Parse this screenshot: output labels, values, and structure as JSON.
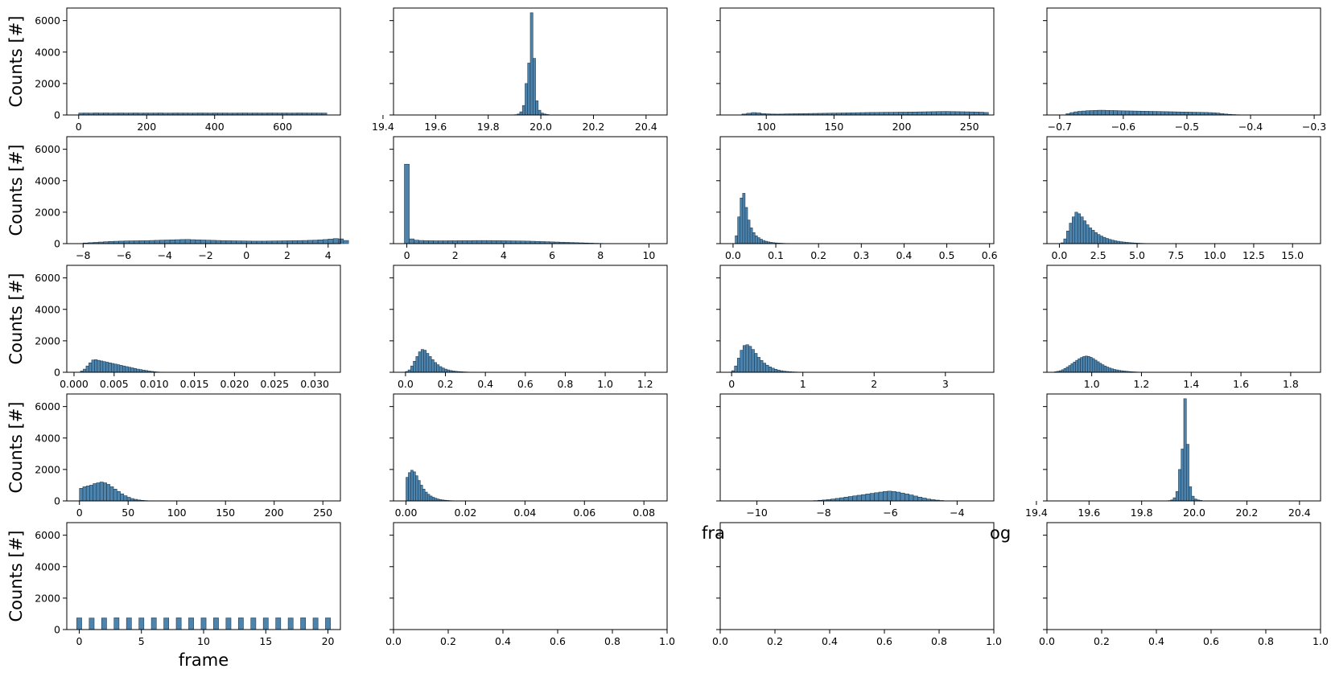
{
  "chart_data": {
    "type": "bar",
    "layout": "grid",
    "rows": 5,
    "cols": 4,
    "shared_y": true,
    "ylim": [
      0,
      6800
    ],
    "y_ticks": [
      0,
      2000,
      4000,
      6000
    ],
    "ylabel": "Counts [#]",
    "grid": false,
    "bar_color": "#4c84ae",
    "overlapping_text_left": "fra",
    "overlapping_text_right": "og",
    "subplots": [
      {
        "xlim": [
          -35,
          770
        ],
        "x_ticks": [
          0,
          200,
          400,
          600
        ],
        "xlabel": "",
        "bars": {
          "x0": 0,
          "bin_width": 14.6,
          "counts": [
            120,
            125,
            118,
            130,
            122,
            128,
            119,
            124,
            126,
            121,
            123,
            127,
            120,
            125,
            122,
            124,
            128,
            119,
            121,
            126,
            123,
            125,
            120,
            122,
            127,
            124,
            121,
            126,
            123,
            125,
            119,
            122,
            124,
            127,
            120,
            125,
            123,
            121,
            126,
            124,
            122,
            125,
            120,
            123,
            127,
            124,
            121,
            125,
            122,
            120
          ]
        }
      },
      {
        "xlim": [
          19.44,
          20.48
        ],
        "x_ticks": [
          19.4,
          19.6,
          19.8,
          20.0,
          20.2,
          20.4
        ],
        "xlabel": "",
        "bars": {
          "x0": 19.9,
          "bin_width": 0.01,
          "counts": [
            20,
            60,
            200,
            600,
            2000,
            3300,
            6500,
            3600,
            900,
            300,
            120,
            60,
            30,
            10,
            5,
            2
          ]
        }
      },
      {
        "xlim": [
          66,
          268
        ],
        "x_ticks": [
          100,
          150,
          200,
          250
        ],
        "xlabel": "",
        "bars": {
          "x0": 82,
          "bin_width": 3.5,
          "counts": [
            60,
            110,
            150,
            130,
            90,
            70,
            60,
            55,
            60,
            70,
            75,
            80,
            85,
            90,
            95,
            100,
            105,
            110,
            115,
            120,
            125,
            130,
            135,
            140,
            145,
            150,
            155,
            160,
            160,
            165,
            170,
            170,
            175,
            180,
            180,
            185,
            190,
            195,
            200,
            205,
            210,
            215,
            220,
            220,
            215,
            210,
            205,
            200,
            195,
            190,
            180,
            160
          ]
        }
      },
      {
        "xlim": [
          -0.72,
          -0.29
        ],
        "x_ticks": [
          -0.7,
          -0.6,
          -0.5,
          -0.4,
          -0.3
        ],
        "xlabel": "",
        "bars": {
          "x0": -0.69,
          "bin_width": 0.0062,
          "counts": [
            80,
            150,
            200,
            230,
            250,
            270,
            280,
            290,
            300,
            300,
            290,
            285,
            280,
            270,
            265,
            260,
            255,
            250,
            245,
            240,
            235,
            230,
            225,
            220,
            215,
            210,
            205,
            200,
            195,
            190,
            185,
            180,
            175,
            170,
            165,
            160,
            150,
            140,
            120,
            90,
            60,
            40,
            25,
            15
          ]
        }
      },
      {
        "xlim": [
          -8.8,
          4.6
        ],
        "x_ticks": [
          -8,
          -6,
          -4,
          -2,
          0,
          2,
          4
        ],
        "xlabel": "",
        "bars": {
          "x0": -8.0,
          "bin_width": 0.25,
          "counts": [
            40,
            60,
            80,
            100,
            120,
            140,
            150,
            160,
            170,
            175,
            180,
            185,
            190,
            200,
            210,
            220,
            230,
            240,
            250,
            260,
            265,
            250,
            240,
            230,
            220,
            210,
            200,
            190,
            185,
            180,
            175,
            170,
            165,
            160,
            160,
            160,
            165,
            170,
            175,
            180,
            185,
            190,
            195,
            200,
            210,
            220,
            240,
            260,
            290,
            320,
            300,
            200
          ]
        }
      },
      {
        "xlim": [
          -0.55,
          10.75
        ],
        "x_ticks": [
          0,
          2,
          4,
          6,
          8,
          10
        ],
        "xlabel": "",
        "bars": {
          "x0": -0.1,
          "bin_width": 0.2,
          "counts": [
            5050,
            300,
            220,
            200,
            190,
            185,
            180,
            180,
            180,
            185,
            185,
            190,
            190,
            190,
            195,
            195,
            195,
            195,
            190,
            190,
            185,
            180,
            175,
            170,
            165,
            160,
            150,
            140,
            130,
            120,
            110,
            100,
            90,
            80,
            70,
            60,
            50,
            40,
            30,
            22,
            15,
            10,
            6,
            4,
            2
          ]
        }
      },
      {
        "xlim": [
          -0.03,
          0.61
        ],
        "x_ticks": [
          0.0,
          0.1,
          0.2,
          0.3,
          0.4,
          0.5,
          0.6
        ],
        "xlabel": "",
        "bars": {
          "x0": 0.005,
          "bin_width": 0.0058,
          "counts": [
            500,
            1700,
            2900,
            3200,
            2300,
            1500,
            1000,
            700,
            500,
            380,
            280,
            200,
            150,
            110,
            80,
            60,
            45,
            35,
            25,
            18,
            12,
            8,
            5,
            3
          ]
        }
      },
      {
        "xlim": [
          -0.8,
          16.8
        ],
        "x_ticks": [
          0.0,
          2.5,
          5.0,
          7.5,
          10.0,
          12.5,
          15.0
        ],
        "xlabel": "",
        "bars": {
          "x0": 0.1,
          "bin_width": 0.18,
          "counts": [
            50,
            300,
            800,
            1300,
            1700,
            2000,
            1900,
            1700,
            1450,
            1200,
            1000,
            850,
            700,
            580,
            480,
            400,
            330,
            270,
            220,
            180,
            150,
            120,
            100,
            80,
            65,
            50,
            40,
            30,
            22,
            15,
            10,
            6
          ]
        }
      },
      {
        "xlim": [
          -0.0009,
          0.0332
        ],
        "x_ticks": [
          0.0,
          0.005,
          0.01,
          0.015,
          0.02,
          0.025,
          0.03
        ],
        "xlabel": "",
        "bars": {
          "x0": 0.0008,
          "bin_width": 0.00035,
          "counts": [
            80,
            200,
            400,
            600,
            780,
            800,
            760,
            720,
            680,
            640,
            600,
            560,
            520,
            480,
            440,
            400,
            360,
            320,
            280,
            240,
            200,
            170,
            140,
            110,
            80,
            55,
            35,
            20,
            12,
            6
          ]
        }
      },
      {
        "xlim": [
          -0.06,
          1.31
        ],
        "x_ticks": [
          0.0,
          0.2,
          0.4,
          0.6,
          0.8,
          1.0,
          1.2
        ],
        "xlabel": "",
        "bars": {
          "x0": 0.0,
          "bin_width": 0.013,
          "counts": [
            50,
            150,
            400,
            700,
            1000,
            1300,
            1450,
            1400,
            1200,
            1000,
            800,
            620,
            480,
            360,
            270,
            200,
            150,
            110,
            80,
            60,
            45,
            35,
            25,
            18,
            12,
            8
          ]
        }
      },
      {
        "xlim": [
          -0.16,
          3.68
        ],
        "x_ticks": [
          0,
          1,
          2,
          3
        ],
        "xlabel": "",
        "bars": {
          "x0": 0.0,
          "bin_width": 0.04,
          "counts": [
            100,
            400,
            900,
            1400,
            1700,
            1750,
            1650,
            1450,
            1200,
            950,
            750,
            580,
            450,
            340,
            260,
            190,
            140,
            100,
            70,
            50,
            35,
            25,
            18,
            12,
            8,
            5
          ]
        }
      },
      {
        "xlim": [
          0.82,
          1.92
        ],
        "x_ticks": [
          1.0,
          1.2,
          1.4,
          1.6,
          1.8
        ],
        "xlabel": "",
        "bars": {
          "x0": 0.85,
          "bin_width": 0.0095,
          "counts": [
            30,
            60,
            100,
            160,
            240,
            330,
            430,
            540,
            650,
            760,
            860,
            940,
            1000,
            1030,
            1010,
            950,
            870,
            770,
            670,
            570,
            480,
            400,
            330,
            270,
            220,
            180,
            150,
            120,
            100,
            80,
            65,
            50,
            38,
            28,
            20,
            14,
            9,
            6
          ]
        }
      },
      {
        "xlim": [
          -13,
          268
        ],
        "x_ticks": [
          0,
          50,
          100,
          150,
          200,
          250
        ],
        "xlabel": "",
        "bars": {
          "x0": 0,
          "bin_width": 3.5,
          "counts": [
            800,
            900,
            950,
            1000,
            1100,
            1150,
            1200,
            1150,
            1050,
            900,
            750,
            600,
            450,
            330,
            230,
            150,
            100,
            60,
            35,
            20,
            10,
            5
          ]
        }
      },
      {
        "xlim": [
          -0.0042,
          0.0878
        ],
        "x_ticks": [
          0.0,
          0.02,
          0.04,
          0.06,
          0.08
        ],
        "xlabel": "",
        "bars": {
          "x0": 0.0,
          "bin_width": 0.0008,
          "counts": [
            1500,
            1800,
            1950,
            1850,
            1600,
            1300,
            1000,
            750,
            560,
            420,
            310,
            230,
            170,
            120,
            85,
            60,
            42,
            30,
            20,
            14,
            9,
            6
          ]
        }
      },
      {
        "xlim": [
          -11.1,
          -2.9
        ],
        "x_ticks": [
          -10,
          -8,
          -6,
          -4
        ],
        "xlabel": "",
        "bars": {
          "x0": -8.3,
          "bin_width": 0.13,
          "counts": [
            20,
            40,
            60,
            90,
            120,
            160,
            200,
            240,
            280,
            320,
            360,
            400,
            440,
            480,
            520,
            560,
            600,
            620,
            600,
            560,
            500,
            440,
            380,
            310,
            240,
            180,
            120,
            80,
            50,
            25
          ]
        }
      },
      {
        "xlim": [
          19.44,
          20.48
        ],
        "x_ticks": [
          19.4,
          19.6,
          19.8,
          20.0,
          20.2,
          20.4
        ],
        "xlabel": "",
        "bars": {
          "x0": 19.9,
          "bin_width": 0.01,
          "counts": [
            20,
            60,
            200,
            600,
            2000,
            3300,
            6500,
            3600,
            900,
            300,
            120,
            60,
            30,
            10,
            5,
            2
          ]
        }
      },
      {
        "xlim": [
          -1,
          21
        ],
        "x_ticks": [
          0,
          5,
          10,
          15,
          20
        ],
        "xlabel": "frame",
        "bars": {
          "x0": -0.2,
          "bin_width": 0.4,
          "positions": [
            0,
            1,
            2,
            3,
            4,
            5,
            6,
            7,
            8,
            9,
            10,
            11,
            12,
            13,
            14,
            15,
            16,
            17,
            18,
            19,
            20
          ],
          "counts": [
            740,
            730,
            735,
            745,
            740,
            738,
            742,
            736,
            744,
            740,
            739,
            741,
            737,
            743,
            740,
            738,
            742,
            735,
            745,
            736,
            740
          ]
        }
      },
      {
        "xlim": [
          0.0,
          1.0
        ],
        "x_ticks": [
          0.0,
          0.2,
          0.4,
          0.6,
          0.8,
          1.0
        ],
        "xlabel": "",
        "bars": null
      },
      {
        "xlim": [
          0.0,
          1.0
        ],
        "x_ticks": [
          0.0,
          0.2,
          0.4,
          0.6,
          0.8,
          1.0
        ],
        "xlabel": "",
        "bars": null
      },
      {
        "xlim": [
          0.0,
          1.0
        ],
        "x_ticks": [
          0.0,
          0.2,
          0.4,
          0.6,
          0.8,
          1.0
        ],
        "xlabel": "",
        "bars": null
      }
    ]
  }
}
